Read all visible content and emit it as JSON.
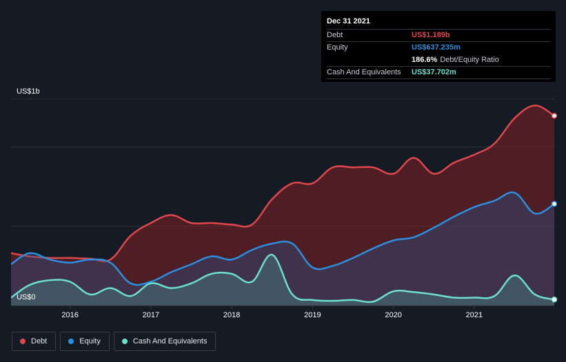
{
  "tooltip": {
    "date": "Dec 31 2021",
    "debt_label": "Debt",
    "debt_value": "US$1.189b",
    "equity_label": "Equity",
    "equity_value": "US$637.235m",
    "ratio_value": "186.6%",
    "ratio_label": "Debt/Equity Ratio",
    "cash_label": "Cash And Equivalents",
    "cash_value": "US$37.702m"
  },
  "legend": {
    "debt": "Debt",
    "equity": "Equity",
    "cash": "Cash And Equivalents"
  },
  "colors": {
    "debt": "#e0474c",
    "equity": "#2b8fe0",
    "cash": "#6de0cf",
    "background": "#151b24"
  },
  "chart_data": {
    "type": "area",
    "y_top_label": "US$1b",
    "y_bottom_label": "US$0",
    "ylim": [
      0,
      1.3
    ],
    "xlim": [
      2015.27,
      2021.99
    ],
    "x_ticks": [
      {
        "value": 2016,
        "label": "2016"
      },
      {
        "value": 2017,
        "label": "2017"
      },
      {
        "value": 2018,
        "label": "2018"
      },
      {
        "value": 2019,
        "label": "2019"
      },
      {
        "value": 2020,
        "label": "2020"
      },
      {
        "value": 2021,
        "label": "2021"
      }
    ],
    "grid_values": [
      0.5,
      1.0,
      1.3
    ],
    "series": [
      {
        "name": "Debt",
        "key": "debt",
        "points": [
          [
            2015.27,
            0.33
          ],
          [
            2015.5,
            0.31
          ],
          [
            2015.75,
            0.3
          ],
          [
            2016.0,
            0.3
          ],
          [
            2016.25,
            0.295
          ],
          [
            2016.5,
            0.29
          ],
          [
            2016.75,
            0.44
          ],
          [
            2017.0,
            0.52
          ],
          [
            2017.25,
            0.57
          ],
          [
            2017.5,
            0.52
          ],
          [
            2017.75,
            0.52
          ],
          [
            2018.0,
            0.51
          ],
          [
            2018.25,
            0.51
          ],
          [
            2018.5,
            0.67
          ],
          [
            2018.75,
            0.77
          ],
          [
            2019.0,
            0.77
          ],
          [
            2019.25,
            0.87
          ],
          [
            2019.5,
            0.87
          ],
          [
            2019.75,
            0.87
          ],
          [
            2020.0,
            0.83
          ],
          [
            2020.25,
            0.93
          ],
          [
            2020.5,
            0.83
          ],
          [
            2020.75,
            0.9
          ],
          [
            2021.0,
            0.95
          ],
          [
            2021.25,
            1.02
          ],
          [
            2021.5,
            1.18
          ],
          [
            2021.75,
            1.26
          ],
          [
            2021.99,
            1.195
          ]
        ]
      },
      {
        "name": "Equity",
        "key": "equity",
        "points": [
          [
            2015.27,
            0.26
          ],
          [
            2015.5,
            0.33
          ],
          [
            2015.75,
            0.29
          ],
          [
            2016.0,
            0.27
          ],
          [
            2016.25,
            0.29
          ],
          [
            2016.5,
            0.27
          ],
          [
            2016.75,
            0.14
          ],
          [
            2017.0,
            0.15
          ],
          [
            2017.25,
            0.21
          ],
          [
            2017.5,
            0.26
          ],
          [
            2017.75,
            0.31
          ],
          [
            2018.0,
            0.29
          ],
          [
            2018.25,
            0.35
          ],
          [
            2018.5,
            0.39
          ],
          [
            2018.75,
            0.39
          ],
          [
            2019.0,
            0.24
          ],
          [
            2019.25,
            0.25
          ],
          [
            2019.5,
            0.3
          ],
          [
            2019.75,
            0.36
          ],
          [
            2020.0,
            0.41
          ],
          [
            2020.25,
            0.43
          ],
          [
            2020.5,
            0.49
          ],
          [
            2020.75,
            0.56
          ],
          [
            2021.0,
            0.62
          ],
          [
            2021.25,
            0.66
          ],
          [
            2021.5,
            0.71
          ],
          [
            2021.75,
            0.58
          ],
          [
            2021.99,
            0.64
          ]
        ]
      },
      {
        "name": "Cash And Equivalents",
        "key": "cash",
        "points": [
          [
            2015.27,
            0.05
          ],
          [
            2015.5,
            0.13
          ],
          [
            2015.75,
            0.16
          ],
          [
            2016.0,
            0.15
          ],
          [
            2016.25,
            0.07
          ],
          [
            2016.5,
            0.11
          ],
          [
            2016.75,
            0.06
          ],
          [
            2017.0,
            0.14
          ],
          [
            2017.25,
            0.11
          ],
          [
            2017.5,
            0.14
          ],
          [
            2017.75,
            0.2
          ],
          [
            2018.0,
            0.2
          ],
          [
            2018.25,
            0.15
          ],
          [
            2018.5,
            0.32
          ],
          [
            2018.75,
            0.07
          ],
          [
            2019.0,
            0.035
          ],
          [
            2019.25,
            0.03
          ],
          [
            2019.5,
            0.035
          ],
          [
            2019.75,
            0.025
          ],
          [
            2020.0,
            0.09
          ],
          [
            2020.25,
            0.085
          ],
          [
            2020.5,
            0.07
          ],
          [
            2020.75,
            0.05
          ],
          [
            2021.0,
            0.05
          ],
          [
            2021.25,
            0.06
          ],
          [
            2021.5,
            0.19
          ],
          [
            2021.75,
            0.07
          ],
          [
            2021.99,
            0.038
          ]
        ]
      }
    ]
  }
}
